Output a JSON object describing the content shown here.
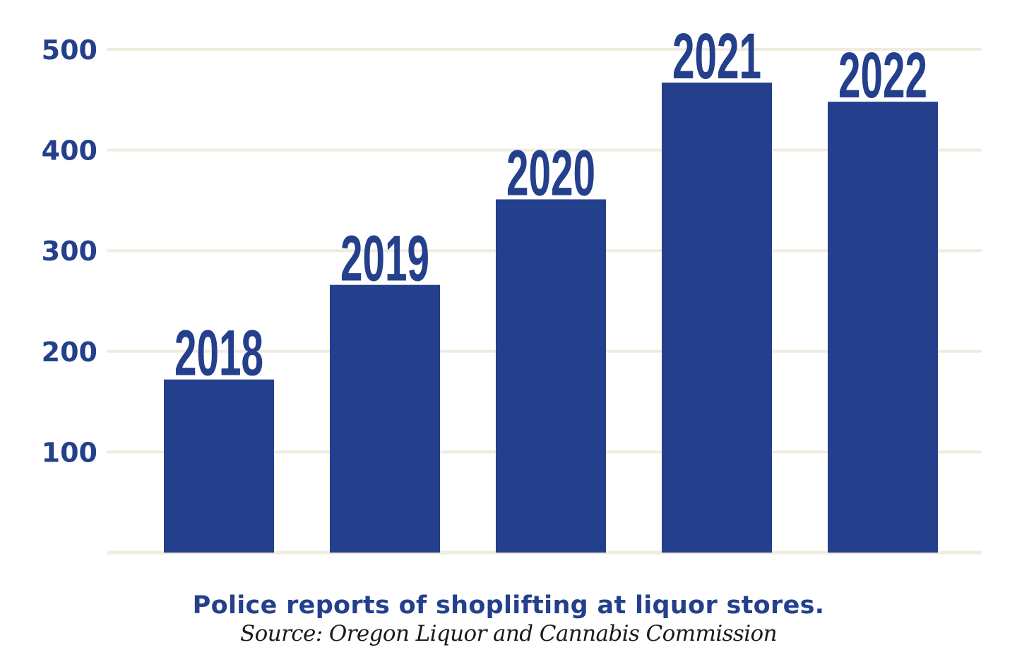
{
  "chart_data": {
    "type": "bar",
    "categories": [
      "2018",
      "2019",
      "2020",
      "2021",
      "2022"
    ],
    "values": [
      172,
      266,
      351,
      467,
      448
    ],
    "yticks": [
      100,
      200,
      300,
      400,
      500
    ],
    "ylim": [
      0,
      500
    ],
    "grid": true,
    "title": "Police reports of shoplifting at liquor stores.",
    "source": "Source: Oregon Liquor and Cannabis Commission",
    "xlabel": "",
    "ylabel": ""
  },
  "colors": {
    "bar": "#24408c",
    "grid": "#efece0",
    "text": "#24408c"
  }
}
